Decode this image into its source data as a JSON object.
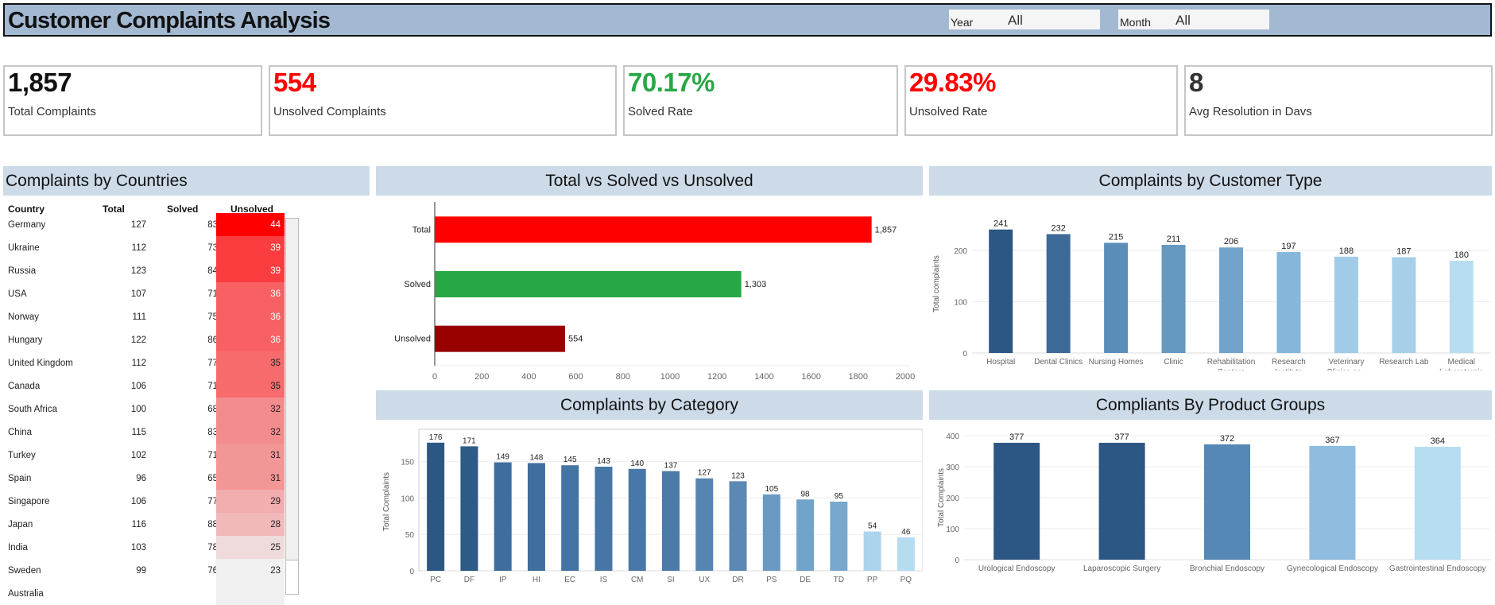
{
  "header": {
    "title": "Customer Complaints Analysis",
    "filters": [
      {
        "label": "Year",
        "value": "All"
      },
      {
        "label": "Month",
        "value": "All"
      }
    ]
  },
  "kpis": [
    {
      "value": "1,857",
      "label": "Total Complaints",
      "color": "#111111"
    },
    {
      "value": "554",
      "label": "Unsolved Complaints",
      "color": "#ff0000"
    },
    {
      "value": "70.17%",
      "label": "Solved Rate",
      "color": "#28a745"
    },
    {
      "value": "29.83%",
      "label": "Unsolved Rate",
      "color": "#ff0000"
    },
    {
      "value": "8",
      "label": "Avg Resolution in Davs",
      "color": "#333333"
    }
  ],
  "countries_table": {
    "title": "Complaints by Countries",
    "columns": [
      "Country",
      "Total",
      "Solved",
      "Unsolved"
    ],
    "rows": [
      {
        "country": "Germany",
        "total": "127",
        "solved": "83",
        "unsolved": "44",
        "shade": "#ff0000",
        "text": "#ffffff"
      },
      {
        "country": "Ukraine",
        "total": "112",
        "solved": "73",
        "unsolved": "39",
        "shade": "#fc3d3f",
        "text": "#ffffff"
      },
      {
        "country": "Russia",
        "total": "123",
        "solved": "84",
        "unsolved": "39",
        "shade": "#fc3d3f",
        "text": "#ffffff"
      },
      {
        "country": "USA",
        "total": "107",
        "solved": "71",
        "unsolved": "36",
        "shade": "#f86163",
        "text": "#ffffff"
      },
      {
        "country": "Norway",
        "total": "111",
        "solved": "75",
        "unsolved": "36",
        "shade": "#f86163",
        "text": "#ffffff"
      },
      {
        "country": "Hungary",
        "total": "122",
        "solved": "86",
        "unsolved": "36",
        "shade": "#f86163",
        "text": "#ffffff"
      },
      {
        "country": "United Kingdom",
        "total": "112",
        "solved": "77",
        "unsolved": "35",
        "shade": "#f76b6c",
        "text": "#222222"
      },
      {
        "country": "Canada",
        "total": "106",
        "solved": "71",
        "unsolved": "35",
        "shade": "#f76b6c",
        "text": "#222222"
      },
      {
        "country": "South Africa",
        "total": "100",
        "solved": "68",
        "unsolved": "32",
        "shade": "#f38c8c",
        "text": "#222222"
      },
      {
        "country": "China",
        "total": "115",
        "solved": "83",
        "unsolved": "32",
        "shade": "#f38c8c",
        "text": "#222222"
      },
      {
        "country": "Turkey",
        "total": "102",
        "solved": "71",
        "unsolved": "31",
        "shade": "#f39696",
        "text": "#222222"
      },
      {
        "country": "Spain",
        "total": "96",
        "solved": "65",
        "unsolved": "31",
        "shade": "#f39696",
        "text": "#222222"
      },
      {
        "country": "Singapore",
        "total": "106",
        "solved": "77",
        "unsolved": "29",
        "shade": "#f2adae",
        "text": "#222222"
      },
      {
        "country": "Japan",
        "total": "116",
        "solved": "88",
        "unsolved": "28",
        "shade": "#f1b9b9",
        "text": "#222222"
      },
      {
        "country": "India",
        "total": "103",
        "solved": "78",
        "unsolved": "25",
        "shade": "#efdbdb",
        "text": "#222222"
      },
      {
        "country": "Sweden",
        "total": "99",
        "solved": "76",
        "unsolved": "23",
        "shade": "#f0f0f0",
        "text": "#222222"
      },
      {
        "country": "Australia",
        "total": "",
        "solved": "",
        "unsolved": "",
        "shade": "#f0f0f0",
        "text": "#222222"
      }
    ]
  },
  "chart_data": [
    {
      "id": "total-vs-solved",
      "type": "bar",
      "orientation": "horizontal",
      "title": "Total vs Solved vs Unsolved",
      "categories": [
        "Total",
        "Solved",
        "Unsolved"
      ],
      "values": [
        1857,
        1303,
        554
      ],
      "value_labels": [
        "1,857",
        "1,303",
        "554"
      ],
      "colors": [
        "#ff0000",
        "#28a745",
        "#990000"
      ],
      "xlim": [
        0,
        2000
      ],
      "xticks": [
        0,
        200,
        400,
        600,
        800,
        1000,
        1200,
        1400,
        1600,
        1800,
        2000
      ],
      "xlabel": "",
      "ylabel": ""
    },
    {
      "id": "customer-type",
      "type": "bar",
      "title": "Complaints by Customer Type",
      "categories": [
        "Hospital",
        "Dental Clinics",
        "Nursing Homes",
        "Clinic",
        "Rehabilitation Centers",
        "Research Institute",
        "Veterinary Clinics an..",
        "Research Lab",
        "Medical Laboratoreis"
      ],
      "values": [
        241,
        232,
        215,
        211,
        206,
        197,
        188,
        187,
        180
      ],
      "colors": [
        "#2c5784",
        "#3e6a99",
        "#5b8db9",
        "#6699c2",
        "#72a4cb",
        "#86b6da",
        "#a1cbe6",
        "#a7cfe8",
        "#b8ddf0"
      ],
      "ylabel": "Total complaints",
      "ylim": [
        0,
        270
      ],
      "yticks": [
        0,
        100,
        200
      ]
    },
    {
      "id": "category",
      "type": "bar",
      "title": "Complaints by Category",
      "categories": [
        "PC",
        "DF",
        "IP",
        "HI",
        "EC",
        "IS",
        "CM",
        "SI",
        "UX",
        "DR",
        "PS",
        "DE",
        "TD",
        "PP",
        "PQ"
      ],
      "values": [
        176,
        171,
        149,
        148,
        145,
        143,
        140,
        137,
        127,
        123,
        105,
        98,
        95,
        54,
        46
      ],
      "colors": [
        "#2c5784",
        "#2e5a87",
        "#3f6d9d",
        "#406e9e",
        "#4474a3",
        "#4676a5",
        "#4878a7",
        "#4c7ba9",
        "#5785b1",
        "#5b89b4",
        "#6a9ac3",
        "#72a3cb",
        "#78a8cd",
        "#acd4ec",
        "#b6dcf0"
      ],
      "ylabel": "Total Complaints",
      "ylim": [
        0,
        190
      ],
      "yticks": [
        0,
        50,
        100,
        150
      ]
    },
    {
      "id": "product-groups",
      "type": "bar",
      "title": "Compliants By Product  Groups",
      "categories": [
        "Urological Endoscopy",
        "Laparoscopic Surgery",
        "Bronchial Endoscopy",
        "Gynecological Endoscopy",
        "Gastrointestinal Endoscopy"
      ],
      "values": [
        377,
        377,
        372,
        367,
        364
      ],
      "colors": [
        "#2c5784",
        "#2c5784",
        "#5688b6",
        "#8fbcdf",
        "#b7ddf1"
      ],
      "ylabel": "Total Complaints",
      "ylim": [
        0,
        400
      ],
      "yticks": [
        0,
        100,
        200,
        300,
        400
      ]
    }
  ]
}
